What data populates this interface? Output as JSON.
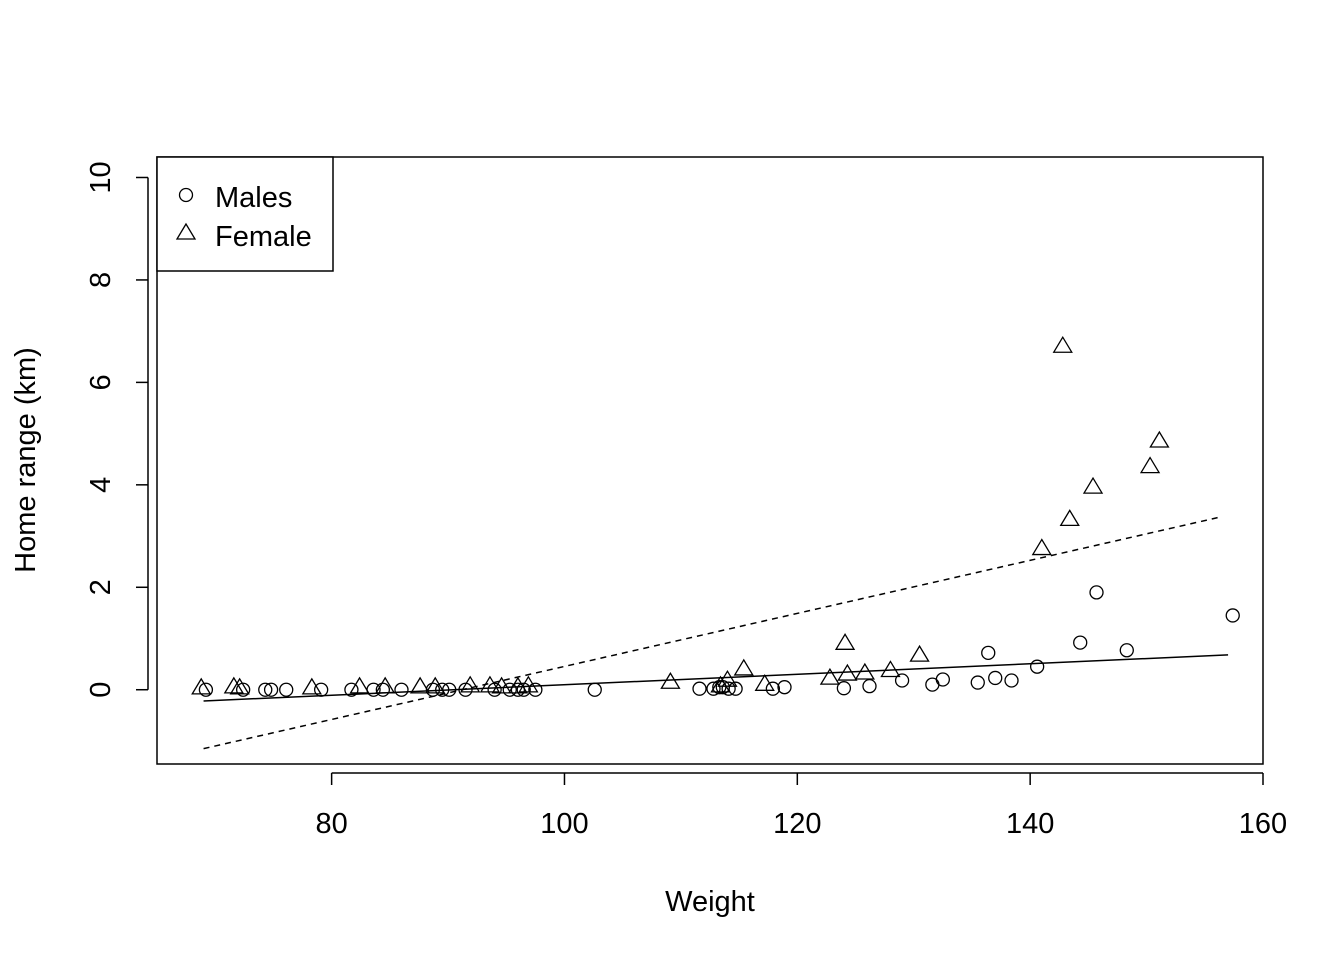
{
  "chart_data": {
    "type": "scatter",
    "title": "",
    "xlabel": "Weight",
    "ylabel": "Home range (km)",
    "xlim": [
      65,
      160
    ],
    "ylim": [
      -1.45,
      10.4
    ],
    "x_ticks": [
      "80",
      "100",
      "120",
      "140",
      "160"
    ],
    "y_ticks": [
      "0",
      "2",
      "4",
      "6",
      "8",
      "10"
    ],
    "grid": false,
    "legend": {
      "position": "top-left",
      "entries": [
        {
          "label": "Males",
          "marker": "circle"
        },
        {
          "label": "Female",
          "marker": "triangle"
        }
      ]
    },
    "series": [
      {
        "name": "Males",
        "marker": "circle",
        "points": [
          [
            69.2,
            0.0
          ],
          [
            72.4,
            0.0
          ],
          [
            74.3,
            0.0
          ],
          [
            74.8,
            0.0
          ],
          [
            76.1,
            0.0
          ],
          [
            79.1,
            0.0
          ],
          [
            81.7,
            0.0
          ],
          [
            83.6,
            0.0
          ],
          [
            84.4,
            0.0
          ],
          [
            86.0,
            0.0
          ],
          [
            88.7,
            0.0
          ],
          [
            89.5,
            0.0
          ],
          [
            90.1,
            0.0
          ],
          [
            91.5,
            0.0
          ],
          [
            94.0,
            0.0
          ],
          [
            95.3,
            0.0
          ],
          [
            96.0,
            0.0
          ],
          [
            96.5,
            0.0
          ],
          [
            97.5,
            0.0
          ],
          [
            102.6,
            0.0
          ],
          [
            111.6,
            0.02
          ],
          [
            112.8,
            0.02
          ],
          [
            113.3,
            0.05
          ],
          [
            113.6,
            0.05
          ],
          [
            114.1,
            0.02
          ],
          [
            114.7,
            0.02
          ],
          [
            117.9,
            0.02
          ],
          [
            118.9,
            0.05
          ],
          [
            124.0,
            0.03
          ],
          [
            126.2,
            0.07
          ],
          [
            129.0,
            0.18
          ],
          [
            131.6,
            0.1
          ],
          [
            132.5,
            0.2
          ],
          [
            135.5,
            0.14
          ],
          [
            136.4,
            0.72
          ],
          [
            137.0,
            0.23
          ],
          [
            138.4,
            0.18
          ],
          [
            140.6,
            0.45
          ],
          [
            144.3,
            0.92
          ],
          [
            145.7,
            1.9
          ],
          [
            148.3,
            0.77
          ],
          [
            157.4,
            1.45
          ]
        ]
      },
      {
        "name": "Female",
        "marker": "triangle",
        "points": [
          [
            68.8,
            0.03
          ],
          [
            71.6,
            0.05
          ],
          [
            72.1,
            0.03
          ],
          [
            78.3,
            0.03
          ],
          [
            82.4,
            0.05
          ],
          [
            84.6,
            0.05
          ],
          [
            87.6,
            0.05
          ],
          [
            88.9,
            0.05
          ],
          [
            91.9,
            0.07
          ],
          [
            93.6,
            0.07
          ],
          [
            94.6,
            0.05
          ],
          [
            96.0,
            0.05
          ],
          [
            96.9,
            0.07
          ],
          [
            109.1,
            0.14
          ],
          [
            113.4,
            0.07
          ],
          [
            114.0,
            0.18
          ],
          [
            115.4,
            0.4
          ],
          [
            117.2,
            0.1
          ],
          [
            122.8,
            0.22
          ],
          [
            124.1,
            0.9
          ],
          [
            124.3,
            0.3
          ],
          [
            125.8,
            0.32
          ],
          [
            128.0,
            0.37
          ],
          [
            130.5,
            0.67
          ],
          [
            141.0,
            2.75
          ],
          [
            142.8,
            6.7
          ],
          [
            143.4,
            3.32
          ],
          [
            145.4,
            3.95
          ],
          [
            150.3,
            4.35
          ],
          [
            151.1,
            4.85
          ]
        ]
      }
    ],
    "fit_lines": [
      {
        "style": "solid",
        "x": [
          69.0,
          157.0
        ],
        "y": [
          -0.22,
          0.68
        ]
      },
      {
        "style": "dashed",
        "x": [
          69.0,
          156.5
        ],
        "y": [
          -1.15,
          3.38
        ]
      }
    ]
  }
}
